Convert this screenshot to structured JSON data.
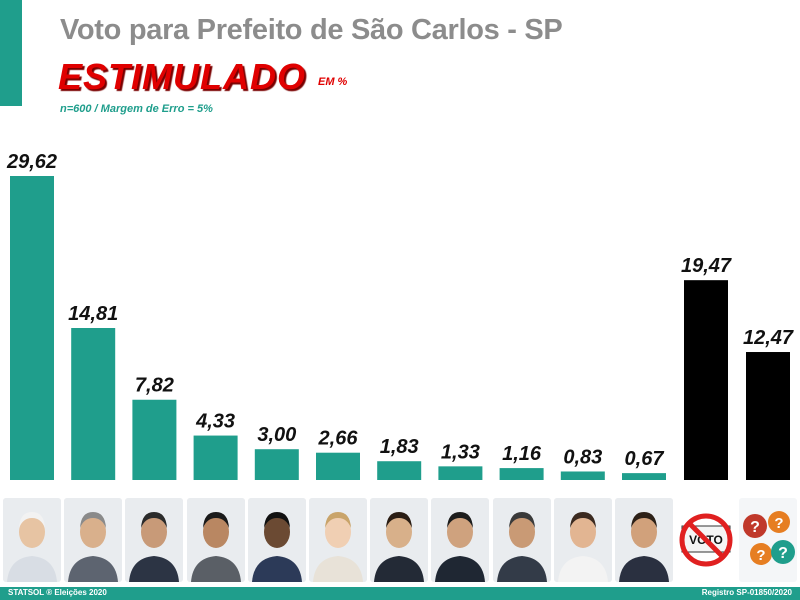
{
  "header": {
    "title": "Voto para Prefeito de São Carlos - SP",
    "subtitle": "ESTIMULADO",
    "unit": "EM %",
    "sample_note": "n=600 / Margem de Erro = 5%"
  },
  "footer": {
    "left": "STATSOL ® Eleições 2020",
    "right": "Registro SP-01850/2020"
  },
  "colors": {
    "candidate_bar": "#1f9e8c",
    "other_bar": "#000000",
    "accent": "#1f9e8c",
    "subtitle": "#e00000"
  },
  "chart_data": {
    "type": "bar",
    "title": "Voto para Prefeito de São Carlos - SP",
    "subtitle": "ESTIMULADO",
    "categories": [
      "",
      "",
      "",
      "",
      "",
      "",
      "",
      "",
      "",
      "",
      "",
      "",
      ""
    ],
    "values": [
      29.62,
      14.81,
      7.82,
      4.33,
      3.0,
      2.66,
      1.83,
      1.33,
      1.16,
      0.83,
      0.67,
      19.47,
      12.47
    ],
    "value_labels": [
      "29,62",
      "14,81",
      "7,82",
      "4,33",
      "3,00",
      "2,66",
      "1,83",
      "1,33",
      "1,16",
      "0,83",
      "0,67",
      "19,47",
      "12,47"
    ],
    "bar_colors": [
      "#1f9e8c",
      "#1f9e8c",
      "#1f9e8c",
      "#1f9e8c",
      "#1f9e8c",
      "#1f9e8c",
      "#1f9e8c",
      "#1f9e8c",
      "#1f9e8c",
      "#1f9e8c",
      "#1f9e8c",
      "#000000",
      "#000000"
    ],
    "images_below": [
      "candidate-photo",
      "candidate-photo",
      "candidate-photo",
      "candidate-photo",
      "candidate-photo",
      "candidate-photo",
      "candidate-photo",
      "candidate-photo",
      "candidate-photo",
      "candidate-photo",
      "candidate-photo",
      "no-vote-icon",
      "question-marks-icon"
    ],
    "no_vote_icon_text": "VOTO",
    "xlabel": "",
    "ylabel": "",
    "ylim": [
      0,
      30
    ],
    "grid": false,
    "legend": "none"
  }
}
